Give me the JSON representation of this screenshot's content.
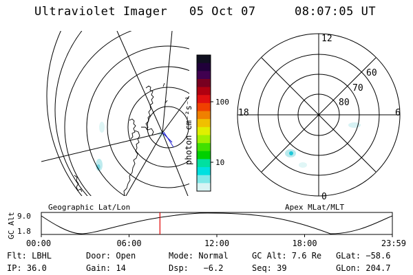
{
  "header": {
    "title": "Ultraviolet Imager",
    "date": "05 Oct 07",
    "time": "08:07:05 UT"
  },
  "colorbar": {
    "unit_label": "photon cm⁻²s⁻¹",
    "tick_labels": [
      "100",
      "10"
    ],
    "colors": [
      "#101020",
      "#20003a",
      "#400050",
      "#780020",
      "#b00010",
      "#e01010",
      "#f04000",
      "#f08000",
      "#f0c000",
      "#e0f000",
      "#a0f000",
      "#40e000",
      "#00d000",
      "#00e0a0",
      "#00e0e0",
      "#80e8e8",
      "#d8f4f4"
    ]
  },
  "polar_plot": {
    "mlt_labels": [
      "12",
      "18",
      "6",
      "0"
    ],
    "lat_labels": [
      "60",
      "70",
      "80"
    ]
  },
  "timeline": {
    "axis_label": "GC Alt",
    "y_ticks": [
      "9.0",
      "1.8"
    ],
    "left_title": "Geographic Lat/Lon",
    "right_title": "Apex MLat/MLT",
    "x_ticks": [
      "00:00",
      "06:00",
      "12:00",
      "18:00",
      "23:59"
    ],
    "current_time_fraction": 0.338,
    "marker_color": "#e00000"
  },
  "status": {
    "flt": "Flt: LBHL",
    "door": "Door: Open",
    "mode": "Mode: Normal",
    "gc_alt": "GC Alt: 7.6 Re",
    "glat": "GLat: −58.6",
    "ip": "IP: 36.0",
    "gain": "Gain: 14",
    "dsp": "Dsp:   −6.2",
    "seq": "Seq: 39",
    "glon": "GLon: 204.7"
  }
}
